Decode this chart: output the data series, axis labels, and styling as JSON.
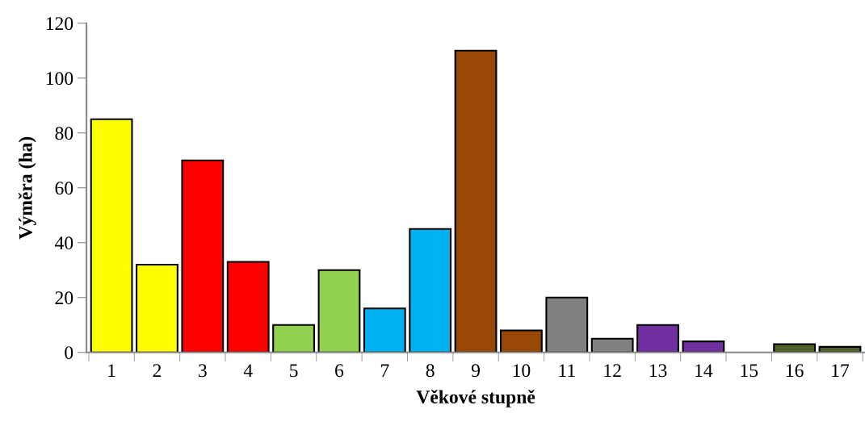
{
  "chart_data": {
    "type": "bar",
    "xlabel": "Věkové stupně",
    "ylabel": "Výměra (ha)",
    "categories": [
      "1",
      "2",
      "3",
      "4",
      "5",
      "6",
      "7",
      "8",
      "9",
      "10",
      "11",
      "12",
      "13",
      "14",
      "15",
      "16",
      "17"
    ],
    "values": [
      85,
      32,
      70,
      33,
      10,
      30,
      16,
      45,
      110,
      8,
      20,
      5,
      10,
      4,
      0,
      3,
      2
    ],
    "colors": [
      "#ffff00",
      "#ffff00",
      "#ff0000",
      "#ff0000",
      "#92d050",
      "#92d050",
      "#00b0f0",
      "#00b0f0",
      "#974706",
      "#974706",
      "#808080",
      "#808080",
      "#7030a0",
      "#7030a0",
      "#4f6228",
      "#4f6228",
      "#4f6228"
    ],
    "ylim": [
      0,
      120
    ],
    "yticks": [
      0,
      20,
      40,
      60,
      80,
      100,
      120
    ],
    "grid": false,
    "legend": false
  }
}
